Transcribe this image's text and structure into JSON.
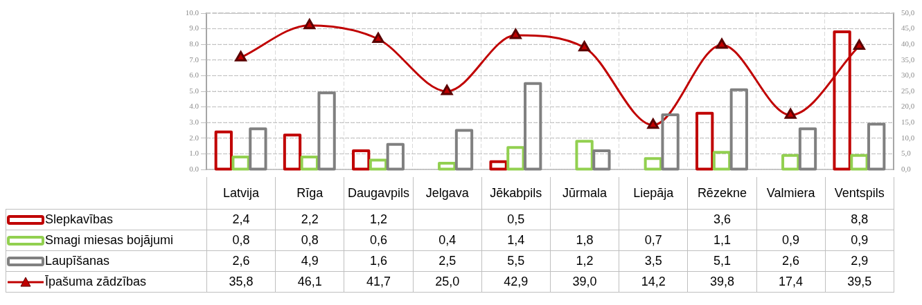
{
  "chart_data": {
    "type": "bar",
    "categories": [
      "Latvija",
      "Rīga",
      "Daugavpils",
      "Jelgava",
      "Jēkabpils",
      "Jūrmala",
      "Liepāja",
      "Rēzekne",
      "Valmiera",
      "Ventspils"
    ],
    "series": [
      {
        "name": "Slepkavības",
        "color": "#c00000",
        "values": [
          2.4,
          2.2,
          1.2,
          null,
          0.5,
          null,
          null,
          3.6,
          null,
          8.8
        ],
        "value_labels": [
          "2,4",
          "2,2",
          "1,2",
          null,
          "0,5",
          null,
          null,
          "3,6",
          null,
          "8,8"
        ]
      },
      {
        "name": "Smagi miesas bojājumi",
        "color": "#92d050",
        "values": [
          0.8,
          0.8,
          0.6,
          0.4,
          1.4,
          1.8,
          0.7,
          1.1,
          0.9,
          0.9
        ],
        "value_labels": [
          "0,8",
          "0,8",
          "0,6",
          "0,4",
          "1,4",
          "1,8",
          "0,7",
          "1,1",
          "0,9",
          "0,9"
        ]
      },
      {
        "name": "Laupīšanas",
        "color": "#808080",
        "values": [
          2.6,
          4.9,
          1.6,
          2.5,
          5.5,
          1.2,
          3.5,
          5.1,
          2.6,
          2.9
        ],
        "value_labels": [
          "2,6",
          "4,9",
          "1,6",
          "2,5",
          "5,5",
          "1,2",
          "3,5",
          "5,1",
          "2,6",
          "2,9"
        ]
      },
      {
        "name": "Īpašuma zādzības",
        "type": "line",
        "axis": "y2",
        "color": "#c00000",
        "marker": "triangle",
        "values": [
          35.8,
          46.1,
          41.7,
          25.0,
          42.9,
          39.0,
          14.2,
          39.8,
          17.4,
          39.5
        ],
        "value_labels": [
          "35,8",
          "46,1",
          "41,7",
          "25,0",
          "42,9",
          "39,0",
          "14,2",
          "39,8",
          "17,4",
          "39,5"
        ]
      }
    ],
    "ylim": [
      0,
      10
    ],
    "yticks": [
      {
        "value": 0,
        "label": "0.0"
      },
      {
        "value": 1,
        "label": "1.0"
      },
      {
        "value": 2,
        "label": "2.0"
      },
      {
        "value": 3,
        "label": "3.0"
      },
      {
        "value": 4,
        "label": "4.0"
      },
      {
        "value": 5,
        "label": "5.0"
      },
      {
        "value": 6,
        "label": "6.0"
      },
      {
        "value": 7,
        "label": "7.0"
      },
      {
        "value": 8,
        "label": "8.0"
      },
      {
        "value": 9,
        "label": "9.0"
      },
      {
        "value": 10,
        "label": "10.0"
      }
    ],
    "y2lim": [
      0,
      50
    ],
    "y2ticks": [
      {
        "value": 0,
        "label": "0,0"
      },
      {
        "value": 5,
        "label": "5,0"
      },
      {
        "value": 10,
        "label": "10,0"
      },
      {
        "value": 15,
        "label": "15,0"
      },
      {
        "value": 20,
        "label": "20,0"
      },
      {
        "value": 25,
        "label": "25,0"
      },
      {
        "value": 30,
        "label": "30,0"
      },
      {
        "value": 35,
        "label": "35,0"
      },
      {
        "value": 40,
        "label": "40,0"
      },
      {
        "value": 45,
        "label": "45,0"
      },
      {
        "value": 50,
        "label": "50,0"
      }
    ],
    "grid": true,
    "legend": "bottom"
  }
}
